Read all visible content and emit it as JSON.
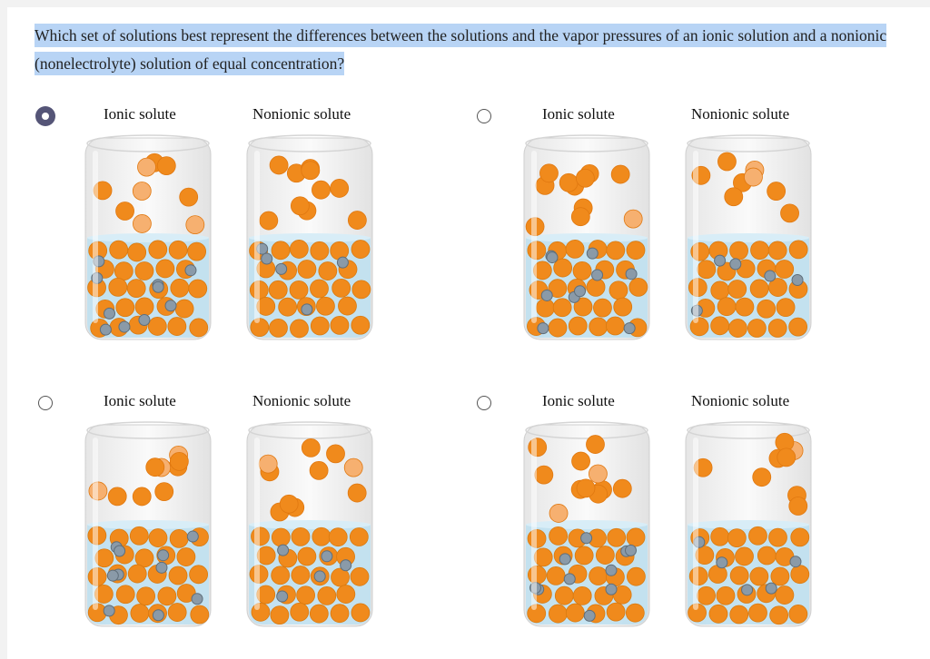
{
  "question": "Which set of solutions best represent the differences between the solutions and the vapor pressures of an ionic solution and a nonionic (nonelectrolyte) solution of equal concentration?",
  "options": [
    {
      "selected": true,
      "ionic_label": "Ionic solute",
      "nonionic_label": "Nonionic solute"
    },
    {
      "selected": false,
      "ionic_label": "Ionic solute",
      "nonionic_label": "Nonionic solute"
    },
    {
      "selected": false,
      "ionic_label": "Ionic solute",
      "nonionic_label": "Nonionic solute"
    },
    {
      "selected": false,
      "ionic_label": "Ionic solute",
      "nonionic_label": "Nonionic solute"
    }
  ],
  "colors": {
    "highlight": "#b8d4f5",
    "solvent": "#f08a1c",
    "ion": "#8a9aa8",
    "liquid": "#bfe0f0",
    "radio_selected": "#555577"
  }
}
